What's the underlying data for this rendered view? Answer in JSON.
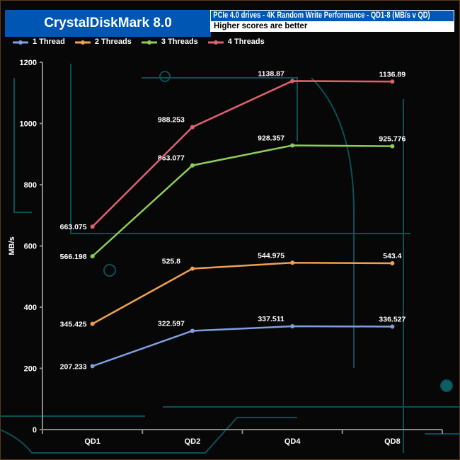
{
  "header": {
    "title": "CrystalDiskMark 8.0",
    "subtitle": "PCIe 4.0 drives - 4K Random Write Performance - QD1-8 (MB/s v QD)",
    "note": "Higher scores are better"
  },
  "chart_data": {
    "type": "line",
    "title": "PCIe 4.0 drives - 4K Random Write Performance - QD1-8 (MB/s v QD)",
    "xlabel": "",
    "ylabel": "MB/s",
    "categories": [
      "QD1",
      "QD2",
      "QD4",
      "QD8"
    ],
    "ylim": [
      0,
      1200
    ],
    "yticks": [
      0,
      200,
      400,
      600,
      800,
      1000,
      1200
    ],
    "grid": false,
    "legend": "top-left",
    "series": [
      {
        "name": "1 Thread",
        "color": "#7f9fe0",
        "values": [
          207.233,
          322.597,
          337.511,
          336.527
        ]
      },
      {
        "name": "2 Threads",
        "color": "#f0a050",
        "values": [
          345.425,
          525.8,
          544.975,
          543.4
        ]
      },
      {
        "name": "3 Threads",
        "color": "#8ccc5a",
        "values": [
          566.198,
          863.077,
          928.357,
          925.776
        ]
      },
      {
        "name": "4 Threads",
        "color": "#e06070",
        "values": [
          663.075,
          988.253,
          1138.87,
          1136.89
        ]
      }
    ]
  }
}
